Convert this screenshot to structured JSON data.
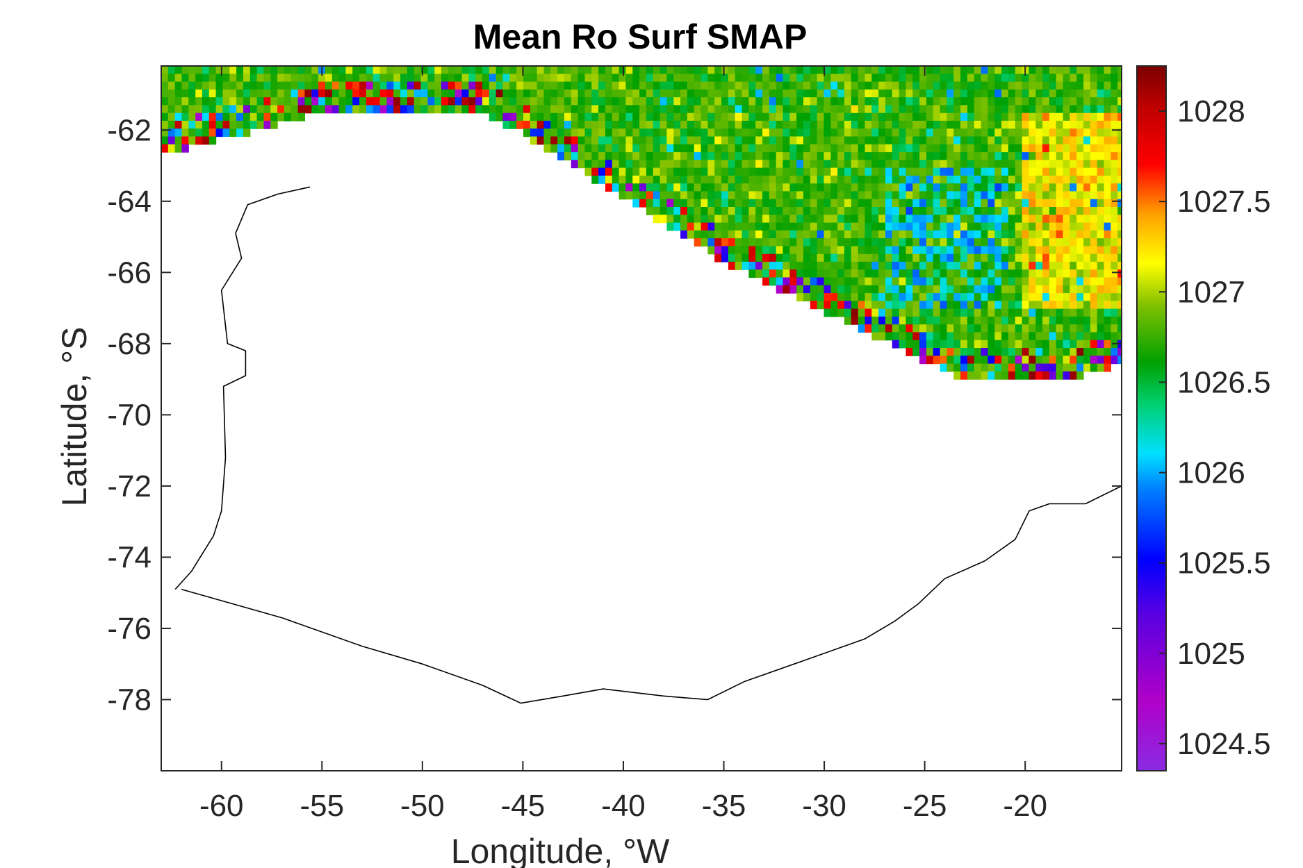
{
  "chart_data": {
    "type": "heatmap",
    "title": "Mean Ro Surf SMAP",
    "xlabel": "Longitude, °W",
    "ylabel": "Latitude, °S",
    "xlim": [
      -63,
      -15.2
    ],
    "ylim": [
      -80,
      -60.2
    ],
    "x_ticks": [
      -60,
      -55,
      -50,
      -45,
      -40,
      -35,
      -30,
      -25,
      -20
    ],
    "x_tick_labels": [
      "-60",
      "-55",
      "-50",
      "-45",
      "-40",
      "-35",
      "-30",
      "-25",
      "-20"
    ],
    "y_ticks": [
      -62,
      -64,
      -66,
      -68,
      -70,
      -72,
      -74,
      -76,
      -78
    ],
    "y_tick_labels": [
      "-62",
      "-64",
      "-66",
      "-68",
      "-70",
      "-72",
      "-74",
      "-76",
      "-78"
    ],
    "colorbar": {
      "range": [
        1024.35,
        1028.25
      ],
      "ticks": [
        1024.5,
        1025,
        1025.5,
        1026,
        1026.5,
        1027,
        1027.5,
        1028
      ],
      "tick_labels": [
        "1024.5",
        "1025",
        "1025.5",
        "1026",
        "1026.5",
        "1027",
        "1027.5",
        "1028"
      ],
      "colormap": "jet-like (purple-blue-cyan-green-yellow-red-darkred)"
    },
    "grid": false,
    "data_region_edge": [
      {
        "lon": -63,
        "lat": -62.6
      },
      {
        "lon": -59,
        "lat": -62.0
      },
      {
        "lon": -55,
        "lat": -61.4
      },
      {
        "lon": -47,
        "lat": -61.4
      },
      {
        "lon": -45,
        "lat": -62.0
      },
      {
        "lon": -40,
        "lat": -63.8
      },
      {
        "lon": -35,
        "lat": -65.6
      },
      {
        "lon": -30,
        "lat": -67.0
      },
      {
        "lon": -25,
        "lat": -68.4
      },
      {
        "lon": -23,
        "lat": -68.9
      },
      {
        "lon": -18,
        "lat": -68.9
      },
      {
        "lon": -15.2,
        "lat": -68.5
      }
    ],
    "field_pattern": {
      "typical_value": 1026.75,
      "high_anomaly_region": {
        "lon": [
          -20,
          -15.2
        ],
        "lat": [
          -67,
          -61.5
        ],
        "value": 1027.3
      },
      "low_anomaly_region": {
        "lon": [
          -27,
          -21
        ],
        "lat": [
          -67,
          -63
        ],
        "value": 1026.3
      },
      "edge_noise": "extreme low/high cells along the northern and southern edges of the data region"
    },
    "coastline": [
      {
        "lon": -62.3,
        "lat": -74.9
      },
      {
        "lon": -61.5,
        "lat": -74.4
      },
      {
        "lon": -60.4,
        "lat": -73.4
      },
      {
        "lon": -60.0,
        "lat": -72.7
      },
      {
        "lon": -59.8,
        "lat": -71.2
      },
      {
        "lon": -59.9,
        "lat": -69.2
      },
      {
        "lon": -58.8,
        "lat": -68.9
      },
      {
        "lon": -58.8,
        "lat": -68.2
      },
      {
        "lon": -59.7,
        "lat": -68.0
      },
      {
        "lon": -59.9,
        "lat": -67.0
      },
      {
        "lon": -60.0,
        "lat": -66.5
      },
      {
        "lon": -59.0,
        "lat": -65.6
      },
      {
        "lon": -59.3,
        "lat": -64.9
      },
      {
        "lon": -58.7,
        "lat": -64.1
      },
      {
        "lon": -57.2,
        "lat": -63.8
      },
      {
        "lon": -55.6,
        "lat": -63.6
      }
    ],
    "coastline_south": [
      {
        "lon": -62.0,
        "lat": -74.9
      },
      {
        "lon": -57.0,
        "lat": -75.7
      },
      {
        "lon": -53.0,
        "lat": -76.5
      },
      {
        "lon": -50.0,
        "lat": -77.0
      },
      {
        "lon": -47.0,
        "lat": -77.6
      },
      {
        "lon": -45.1,
        "lat": -78.1
      },
      {
        "lon": -43.0,
        "lat": -77.9
      },
      {
        "lon": -41.0,
        "lat": -77.7
      },
      {
        "lon": -38.0,
        "lat": -77.9
      },
      {
        "lon": -35.8,
        "lat": -78.0
      },
      {
        "lon": -34.0,
        "lat": -77.5
      },
      {
        "lon": -31.0,
        "lat": -76.9
      },
      {
        "lon": -28.0,
        "lat": -76.3
      },
      {
        "lon": -26.5,
        "lat": -75.8
      },
      {
        "lon": -25.3,
        "lat": -75.3
      },
      {
        "lon": -24.0,
        "lat": -74.6
      },
      {
        "lon": -22.0,
        "lat": -74.1
      },
      {
        "lon": -20.5,
        "lat": -73.5
      },
      {
        "lon": -19.8,
        "lat": -72.7
      },
      {
        "lon": -18.8,
        "lat": -72.5
      },
      {
        "lon": -17.0,
        "lat": -72.5
      },
      {
        "lon": -15.2,
        "lat": -72.0
      }
    ]
  }
}
